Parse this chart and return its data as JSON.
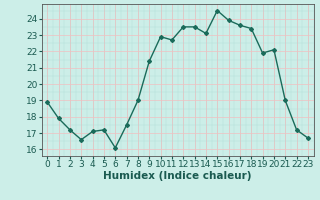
{
  "x": [
    0,
    1,
    2,
    3,
    4,
    5,
    6,
    7,
    8,
    9,
    10,
    11,
    12,
    13,
    14,
    15,
    16,
    17,
    18,
    19,
    20,
    21,
    22,
    23
  ],
  "y": [
    18.9,
    17.9,
    17.2,
    16.6,
    17.1,
    17.2,
    16.1,
    17.5,
    19.0,
    21.4,
    22.9,
    22.7,
    23.5,
    23.5,
    23.1,
    24.5,
    23.9,
    23.6,
    23.4,
    21.9,
    22.1,
    19.0,
    17.2,
    16.7
  ],
  "line_color": "#1a6b5a",
  "marker": "D",
  "markersize": 2.0,
  "linewidth": 1.0,
  "background_color": "#cceee8",
  "grid_color_major": "#f0c0c0",
  "grid_color_cyan": "#b0ddd8",
  "xlabel": "Humidex (Indice chaleur)",
  "ylim": [
    15.6,
    24.9
  ],
  "xlim": [
    -0.5,
    23.5
  ],
  "yticks": [
    16,
    17,
    18,
    19,
    20,
    21,
    22,
    23,
    24
  ],
  "xticks": [
    0,
    1,
    2,
    3,
    4,
    5,
    6,
    7,
    8,
    9,
    10,
    11,
    12,
    13,
    14,
    15,
    16,
    17,
    18,
    19,
    20,
    21,
    22,
    23
  ],
  "xlabel_fontsize": 7.5,
  "tick_fontsize": 6.5,
  "tick_color": "#1a5a50"
}
